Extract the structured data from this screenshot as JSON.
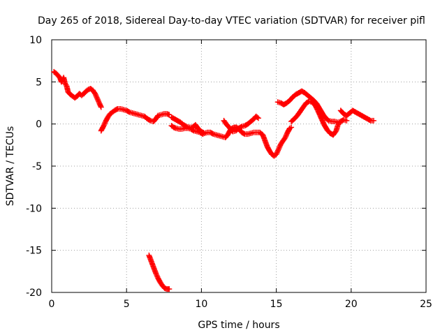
{
  "chart_data": {
    "type": "scatter",
    "title": "Day 265 of 2018, Sidereal Day-to-day VTEC variation (SDTVAR) for receiver pifl",
    "xlabel": "GPS time / hours",
    "ylabel": "SDTVAR / TECUs",
    "xlim": [
      0,
      25
    ],
    "ylim": [
      -20,
      10
    ],
    "xticks": [
      0,
      5,
      10,
      15,
      20,
      25
    ],
    "yticks": [
      -20,
      -15,
      -10,
      -5,
      0,
      5,
      10
    ],
    "grid": true,
    "marker": "+",
    "color": "#ff0000",
    "segments": [
      [
        [
          0.15,
          6.2
        ],
        [
          0.3,
          6.0
        ],
        [
          0.45,
          5.7
        ],
        [
          0.55,
          5.5
        ],
        [
          0.65,
          5.0
        ],
        [
          0.8,
          5.5
        ],
        [
          0.9,
          4.8
        ],
        [
          1.0,
          4.5
        ],
        [
          1.1,
          3.8
        ],
        [
          1.25,
          3.5
        ],
        [
          1.4,
          3.3
        ],
        [
          1.55,
          3.1
        ],
        [
          1.7,
          3.3
        ],
        [
          1.85,
          3.6
        ],
        [
          2.0,
          3.4
        ],
        [
          2.15,
          3.6
        ],
        [
          2.3,
          3.9
        ],
        [
          2.45,
          4.1
        ],
        [
          2.6,
          4.2
        ],
        [
          2.75,
          4.0
        ],
        [
          2.9,
          3.6
        ],
        [
          3.05,
          3.0
        ],
        [
          3.2,
          2.4
        ],
        [
          3.3,
          2.0
        ]
      ],
      [
        [
          3.3,
          -0.8
        ],
        [
          3.45,
          -0.3
        ],
        [
          3.6,
          0.3
        ],
        [
          3.75,
          0.8
        ],
        [
          3.9,
          1.2
        ],
        [
          4.05,
          1.4
        ],
        [
          4.2,
          1.6
        ],
        [
          4.4,
          1.8
        ],
        [
          4.6,
          1.8
        ],
        [
          4.8,
          1.7
        ],
        [
          5.0,
          1.6
        ],
        [
          5.2,
          1.4
        ],
        [
          5.4,
          1.3
        ],
        [
          5.6,
          1.2
        ],
        [
          5.8,
          1.1
        ],
        [
          6.0,
          1.0
        ],
        [
          6.2,
          0.9
        ],
        [
          6.4,
          0.6
        ],
        [
          6.6,
          0.4
        ],
        [
          6.8,
          0.3
        ],
        [
          6.95,
          0.6
        ],
        [
          7.1,
          1.0
        ],
        [
          7.3,
          1.1
        ],
        [
          7.5,
          1.2
        ],
        [
          7.7,
          1.2
        ],
        [
          7.85,
          1.1
        ]
      ],
      [
        [
          8.0,
          0.8
        ],
        [
          8.2,
          0.6
        ],
        [
          8.4,
          0.4
        ],
        [
          8.6,
          0.2
        ],
        [
          8.8,
          -0.1
        ],
        [
          9.0,
          -0.3
        ],
        [
          9.2,
          -0.4
        ],
        [
          9.4,
          -0.4
        ],
        [
          9.6,
          -0.1
        ],
        [
          9.8,
          -0.6
        ],
        [
          10.0,
          -0.9
        ],
        [
          10.2,
          -1.1
        ],
        [
          10.4,
          -1.0
        ],
        [
          10.6,
          -1.0
        ],
        [
          10.8,
          -1.2
        ],
        [
          11.0,
          -1.3
        ],
        [
          11.2,
          -1.4
        ],
        [
          11.4,
          -1.5
        ],
        [
          11.6,
          -1.6
        ],
        [
          11.75,
          -1.3
        ],
        [
          11.9,
          -0.8
        ],
        [
          12.05,
          -0.5
        ],
        [
          12.2,
          -0.4
        ],
        [
          12.35,
          -0.4
        ],
        [
          12.5,
          -0.6
        ],
        [
          12.7,
          -1.0
        ],
        [
          12.9,
          -1.2
        ],
        [
          13.1,
          -1.2
        ],
        [
          13.3,
          -1.1
        ],
        [
          13.5,
          -1.0
        ],
        [
          13.7,
          -1.0
        ],
        [
          13.9,
          -1.0
        ],
        [
          14.1,
          -1.3
        ],
        [
          14.25,
          -2.0
        ],
        [
          14.4,
          -2.7
        ],
        [
          14.55,
          -3.2
        ],
        [
          14.7,
          -3.6
        ],
        [
          14.85,
          -3.8
        ],
        [
          15.0,
          -3.6
        ],
        [
          15.15,
          -3.0
        ],
        [
          15.3,
          -2.4
        ],
        [
          15.45,
          -2.0
        ],
        [
          15.6,
          -1.6
        ],
        [
          15.75,
          -1.0
        ],
        [
          15.9,
          -0.5
        ],
        [
          16.0,
          -0.4
        ]
      ],
      [
        [
          8.0,
          -0.2
        ],
        [
          8.15,
          -0.4
        ],
        [
          8.3,
          -0.5
        ],
        [
          8.5,
          -0.6
        ],
        [
          8.7,
          -0.6
        ],
        [
          8.9,
          -0.5
        ],
        [
          9.1,
          -0.5
        ],
        [
          9.3,
          -0.6
        ],
        [
          9.5,
          -0.8
        ],
        [
          9.7,
          -0.9
        ],
        [
          9.9,
          -1.0
        ],
        [
          10.1,
          -1.2
        ]
      ],
      [
        [
          11.5,
          0.4
        ],
        [
          11.65,
          0.0
        ],
        [
          11.8,
          -0.3
        ],
        [
          11.95,
          -0.6
        ],
        [
          12.1,
          -0.9
        ],
        [
          12.3,
          -0.8
        ],
        [
          12.5,
          -0.5
        ],
        [
          12.7,
          -0.3
        ],
        [
          12.9,
          -0.2
        ],
        [
          13.1,
          0.0
        ],
        [
          13.3,
          0.3
        ],
        [
          13.5,
          0.6
        ],
        [
          13.65,
          0.9
        ],
        [
          13.8,
          0.7
        ]
      ],
      [
        [
          15.1,
          2.6
        ],
        [
          15.3,
          2.5
        ],
        [
          15.5,
          2.3
        ],
        [
          15.7,
          2.5
        ],
        [
          15.9,
          2.8
        ],
        [
          16.1,
          3.2
        ],
        [
          16.3,
          3.5
        ],
        [
          16.5,
          3.7
        ],
        [
          16.7,
          3.9
        ],
        [
          16.9,
          3.7
        ],
        [
          17.1,
          3.4
        ],
        [
          17.3,
          3.1
        ],
        [
          17.5,
          2.8
        ],
        [
          17.7,
          2.4
        ],
        [
          17.9,
          1.8
        ],
        [
          18.1,
          1.2
        ],
        [
          18.3,
          0.7
        ],
        [
          18.5,
          0.4
        ],
        [
          18.7,
          0.3
        ],
        [
          18.9,
          0.3
        ],
        [
          19.1,
          0.2
        ],
        [
          19.3,
          0.3
        ],
        [
          19.5,
          0.5
        ],
        [
          19.7,
          0.4
        ]
      ],
      [
        [
          16.0,
          0.3
        ],
        [
          16.2,
          0.6
        ],
        [
          16.4,
          1.0
        ],
        [
          16.6,
          1.5
        ],
        [
          16.8,
          2.0
        ],
        [
          17.0,
          2.5
        ],
        [
          17.2,
          2.7
        ],
        [
          17.4,
          2.6
        ],
        [
          17.6,
          2.2
        ],
        [
          17.8,
          1.5
        ],
        [
          18.0,
          0.7
        ],
        [
          18.2,
          -0.1
        ],
        [
          18.4,
          -0.7
        ],
        [
          18.6,
          -1.1
        ],
        [
          18.8,
          -1.3
        ],
        [
          19.0,
          -0.8
        ],
        [
          19.1,
          -0.2
        ],
        [
          19.2,
          0.1
        ]
      ],
      [
        [
          19.3,
          1.6
        ],
        [
          19.5,
          1.2
        ],
        [
          19.7,
          1.0
        ],
        [
          19.9,
          1.3
        ],
        [
          20.1,
          1.6
        ],
        [
          20.3,
          1.4
        ],
        [
          20.5,
          1.2
        ],
        [
          20.7,
          1.0
        ],
        [
          20.9,
          0.8
        ],
        [
          21.1,
          0.6
        ],
        [
          21.3,
          0.4
        ],
        [
          21.5,
          0.4
        ]
      ],
      [
        [
          6.5,
          -15.6
        ],
        [
          6.65,
          -16.3
        ],
        [
          6.8,
          -17.0
        ],
        [
          6.95,
          -17.7
        ],
        [
          7.1,
          -18.3
        ],
        [
          7.25,
          -18.8
        ],
        [
          7.4,
          -19.2
        ],
        [
          7.55,
          -19.5
        ],
        [
          7.7,
          -19.6
        ],
        [
          7.85,
          -19.6
        ]
      ]
    ]
  }
}
